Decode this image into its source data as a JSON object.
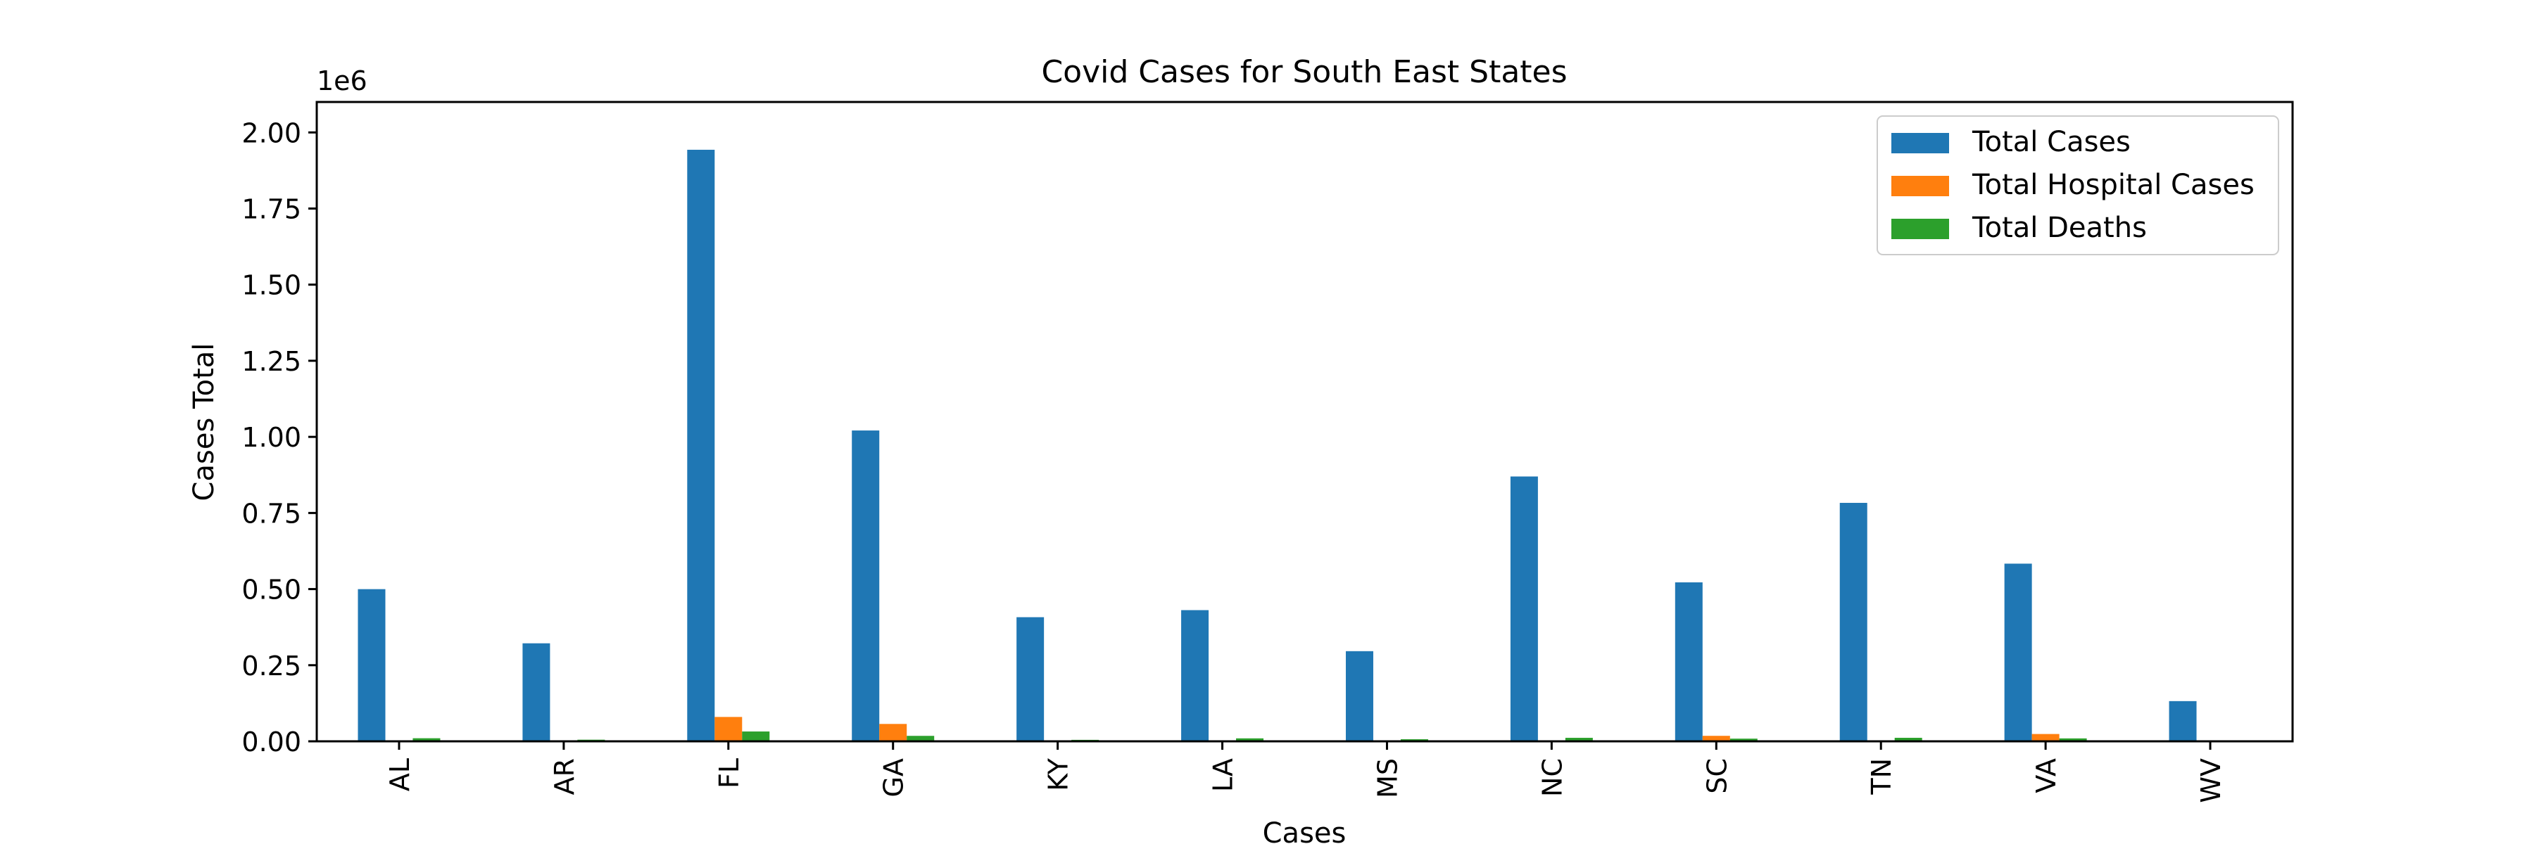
{
  "chart_data": {
    "type": "bar",
    "title": "Covid Cases for South East States",
    "xlabel": "Cases",
    "ylabel": "Cases Total",
    "y_offset_label": "1e6",
    "categories": [
      "AL",
      "AR",
      "FL",
      "GA",
      "KY",
      "LA",
      "MS",
      "NC",
      "SC",
      "TN",
      "VA",
      "WV"
    ],
    "series": [
      {
        "name": "Total Cases",
        "color": "#1f77b4",
        "values": [
          499819,
          321906,
          1943063,
          1020950,
          407686,
          430880,
          296097,
          869873,
          522115,
          783229,
          583569,
          132045
        ]
      },
      {
        "name": "Total Hospital Cases",
        "color": "#ff7f0e",
        "values": [
          0,
          0,
          79993,
          57057,
          0,
          0,
          0,
          0,
          18000,
          0,
          24000,
          0
        ]
      },
      {
        "name": "Total Deaths",
        "color": "#2ca02c",
        "values": [
          10148,
          5319,
          32266,
          17906,
          4819,
          9748,
          6808,
          11502,
          8754,
          11543,
          9596,
          2325
        ]
      }
    ],
    "ylim": [
      0,
      2100000
    ],
    "yticks": [
      0,
      250000,
      500000,
      750000,
      1000000,
      1250000,
      1500000,
      1750000,
      2000000
    ],
    "ytick_labels": [
      "0.00",
      "0.25",
      "0.50",
      "0.75",
      "1.00",
      "1.25",
      "1.50",
      "1.75",
      "2.00"
    ],
    "legend_position": "top-right",
    "grid": false
  }
}
